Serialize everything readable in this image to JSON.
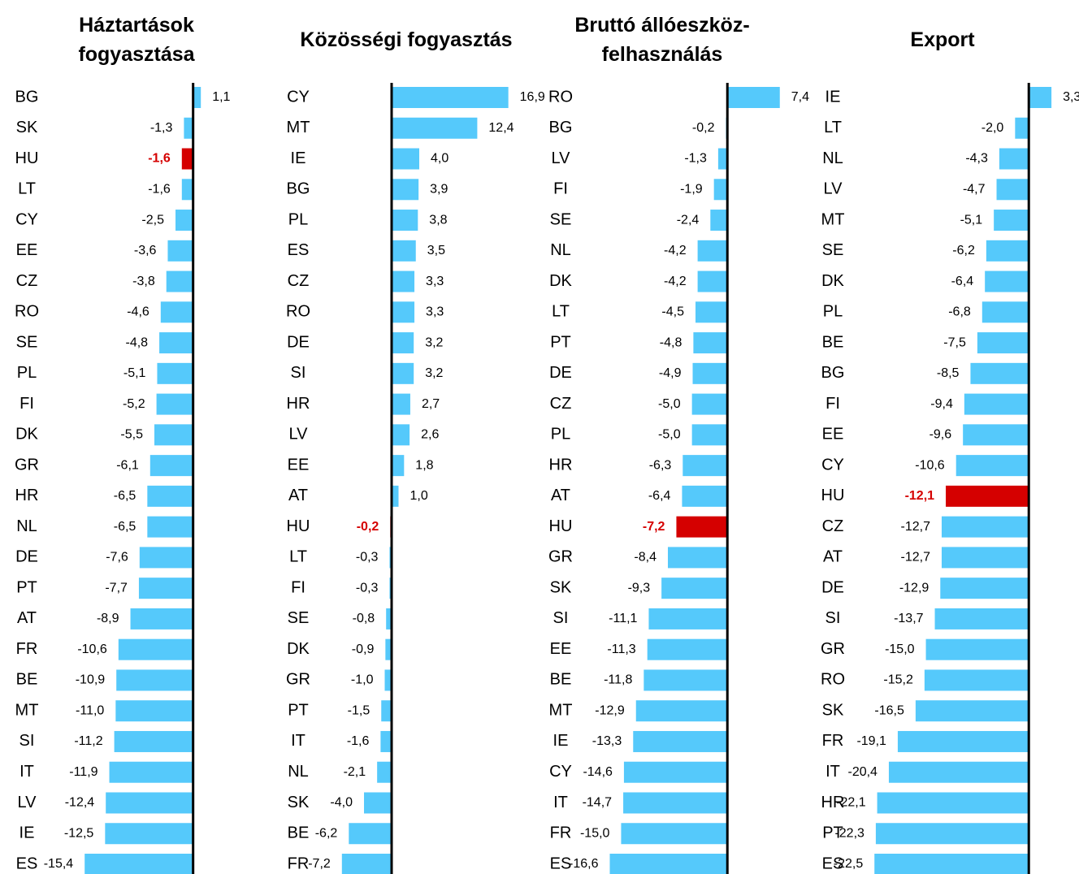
{
  "chart_data": [
    {
      "type": "barh",
      "title": "Háztartások fogyasztása",
      "color": "#55c9fb",
      "categories": [
        "BG",
        "SK",
        "HU",
        "LT",
        "CY",
        "EE",
        "CZ",
        "RO",
        "SE",
        "PL",
        "FI",
        "DK",
        "GR",
        "HR",
        "NL",
        "DE",
        "PT",
        "AT",
        "FR",
        "BE",
        "MT",
        "SI",
        "IT",
        "LV",
        "IE",
        "ES"
      ],
      "values": [
        1.1,
        -1.3,
        -1.6,
        -1.6,
        -2.5,
        -3.6,
        -3.8,
        -4.6,
        -4.8,
        -5.1,
        -5.2,
        -5.5,
        -6.1,
        -6.5,
        -6.5,
        -7.6,
        -7.7,
        -8.9,
        -10.6,
        -10.9,
        -11.0,
        -11.2,
        -11.9,
        -12.4,
        -12.5,
        -15.4
      ],
      "value_labels": [
        "1,1",
        "-1,3",
        "-1,6",
        "-1,6",
        "-2,5",
        "-3,6",
        "-3,8",
        "-4,6",
        "-4,8",
        "-5,1",
        "-5,2",
        "-5,5",
        "-6,1",
        "-6,5",
        "-6,5",
        "-7,6",
        "-7,7",
        "-8,9",
        "-10,6",
        "-10,9",
        "-11,0",
        "-11,2",
        "-11,9",
        "-12,4",
        "-12,5",
        "-15,4"
      ],
      "colors": [
        "#55c9fb",
        "#55c9fb",
        "#d50000",
        "#55c9fb",
        "#55c9fb",
        "#55c9fb",
        "#55c9fb",
        "#55c9fb",
        "#55c9fb",
        "#55c9fb",
        "#55c9fb",
        "#55c9fb",
        "#55c9fb",
        "#55c9fb",
        "#55c9fb",
        "#55c9fb",
        "#55c9fb",
        "#55c9fb",
        "#55c9fb",
        "#55c9fb",
        "#55c9fb",
        "#55c9fb",
        "#55c9fb",
        "#55c9fb",
        "#55c9fb",
        "#55c9fb"
      ],
      "xlim": [
        -16,
        2
      ]
    },
    {
      "type": "barh",
      "title": "Közösségi fogyasztás",
      "color": "#55c9fb",
      "categories": [
        "CY",
        "MT",
        "IE",
        "BG",
        "PL",
        "ES",
        "CZ",
        "RO",
        "DE",
        "SI",
        "HR",
        "LV",
        "EE",
        "AT",
        "HU",
        "LT",
        "FI",
        "SE",
        "DK",
        "GR",
        "PT",
        "IT",
        "NL",
        "SK",
        "BE",
        "FR"
      ],
      "values": [
        16.9,
        12.4,
        4.0,
        3.9,
        3.8,
        3.5,
        3.3,
        3.3,
        3.2,
        3.2,
        2.7,
        2.6,
        1.8,
        1.0,
        -0.2,
        -0.3,
        -0.3,
        -0.8,
        -0.9,
        -1.0,
        -1.5,
        -1.6,
        -2.1,
        -4.0,
        -6.2,
        -7.2
      ],
      "value_labels": [
        "16,9",
        "12,4",
        "4,0",
        "3,9",
        "3,8",
        "3,5",
        "3,3",
        "3,3",
        "3,2",
        "3,2",
        "2,7",
        "2,6",
        "1,8",
        "1,0",
        "-0,2",
        "-0,3",
        "-0,3",
        "-0,8",
        "-0,9",
        "-1,0",
        "-1,5",
        "-1,6",
        "-2,1",
        "-4,0",
        "-6,2",
        "-7,2"
      ],
      "colors": [
        "#55c9fb",
        "#55c9fb",
        "#55c9fb",
        "#55c9fb",
        "#55c9fb",
        "#55c9fb",
        "#55c9fb",
        "#55c9fb",
        "#55c9fb",
        "#55c9fb",
        "#55c9fb",
        "#55c9fb",
        "#55c9fb",
        "#55c9fb",
        "#d50000",
        "#55c9fb",
        "#55c9fb",
        "#55c9fb",
        "#55c9fb",
        "#55c9fb",
        "#55c9fb",
        "#55c9fb",
        "#55c9fb",
        "#55c9fb",
        "#55c9fb",
        "#55c9fb"
      ],
      "xlim": [
        -8,
        18
      ]
    },
    {
      "type": "barh",
      "title": "Bruttó állóeszköz-felhasználás",
      "color": "#55c9fb",
      "categories": [
        "RO",
        "BG",
        "LV",
        "FI",
        "SE",
        "NL",
        "DK",
        "LT",
        "PT",
        "DE",
        "CZ",
        "PL",
        "HR",
        "AT",
        "HU",
        "GR",
        "SK",
        "SI",
        "EE",
        "BE",
        "MT",
        "IE",
        "CY",
        "IT",
        "FR",
        "ES"
      ],
      "values": [
        7.4,
        -0.2,
        -1.3,
        -1.9,
        -2.4,
        -4.2,
        -4.2,
        -4.5,
        -4.8,
        -4.9,
        -5.0,
        -5.0,
        -6.3,
        -6.4,
        -7.2,
        -8.4,
        -9.3,
        -11.1,
        -11.3,
        -11.8,
        -12.9,
        -13.3,
        -14.6,
        -14.7,
        -15.0,
        -16.6
      ],
      "value_labels": [
        "7,4",
        "-0,2",
        "-1,3",
        "-1,9",
        "-2,4",
        "-4,2",
        "-4,2",
        "-4,5",
        "-4,8",
        "-4,9",
        "-5,0",
        "-5,0",
        "-6,3",
        "-6,4",
        "-7,2",
        "-8,4",
        "-9,3",
        "-11,1",
        "-11,3",
        "-11,8",
        "-12,9",
        "-13,3",
        "-14,6",
        "-14,7",
        "-15,0",
        "-16,6"
      ],
      "colors": [
        "#55c9fb",
        "#55c9fb",
        "#55c9fb",
        "#55c9fb",
        "#55c9fb",
        "#55c9fb",
        "#55c9fb",
        "#55c9fb",
        "#55c9fb",
        "#55c9fb",
        "#55c9fb",
        "#55c9fb",
        "#55c9fb",
        "#55c9fb",
        "#d50000",
        "#55c9fb",
        "#55c9fb",
        "#55c9fb",
        "#55c9fb",
        "#55c9fb",
        "#55c9fb",
        "#55c9fb",
        "#55c9fb",
        "#55c9fb",
        "#55c9fb",
        "#55c9fb"
      ],
      "xlim": [
        -17,
        8
      ]
    },
    {
      "type": "barh",
      "title": "Export",
      "color": "#55c9fb",
      "categories": [
        "IE",
        "LT",
        "NL",
        "LV",
        "MT",
        "SE",
        "DK",
        "PL",
        "BE",
        "BG",
        "FI",
        "EE",
        "CY",
        "HU",
        "CZ",
        "AT",
        "DE",
        "SI",
        "GR",
        "RO",
        "SK",
        "FR",
        "IT",
        "HR",
        "PT",
        "ES"
      ],
      "values": [
        3.3,
        -2.0,
        -4.3,
        -4.7,
        -5.1,
        -6.2,
        -6.4,
        -6.8,
        -7.5,
        -8.5,
        -9.4,
        -9.6,
        -10.6,
        -12.1,
        -12.7,
        -12.7,
        -12.9,
        -13.7,
        -15.0,
        -15.2,
        -16.5,
        -19.1,
        -20.4,
        -22.1,
        -22.3,
        -22.5
      ],
      "value_labels": [
        "3,3",
        "-2,0",
        "-4,3",
        "-4,7",
        "-5,1",
        "-6,2",
        "-6,4",
        "-6,8",
        "-7,5",
        "-8,5",
        "-9,4",
        "-9,6",
        "-10,6",
        "-12,1",
        "-12,7",
        "-12,7",
        "-12,9",
        "-13,7",
        "-15,0",
        "-15,2",
        "-16,5",
        "-19,1",
        "-20,4",
        "-22,1",
        "-22,3",
        "-22,5"
      ],
      "colors": [
        "#55c9fb",
        "#55c9fb",
        "#55c9fb",
        "#55c9fb",
        "#55c9fb",
        "#55c9fb",
        "#55c9fb",
        "#55c9fb",
        "#55c9fb",
        "#55c9fb",
        "#55c9fb",
        "#55c9fb",
        "#55c9fb",
        "#d50000",
        "#55c9fb",
        "#55c9fb",
        "#55c9fb",
        "#55c9fb",
        "#55c9fb",
        "#55c9fb",
        "#55c9fb",
        "#55c9fb",
        "#55c9fb",
        "#55c9fb",
        "#55c9fb",
        "#55c9fb"
      ],
      "xlim": [
        -23,
        4
      ]
    }
  ]
}
